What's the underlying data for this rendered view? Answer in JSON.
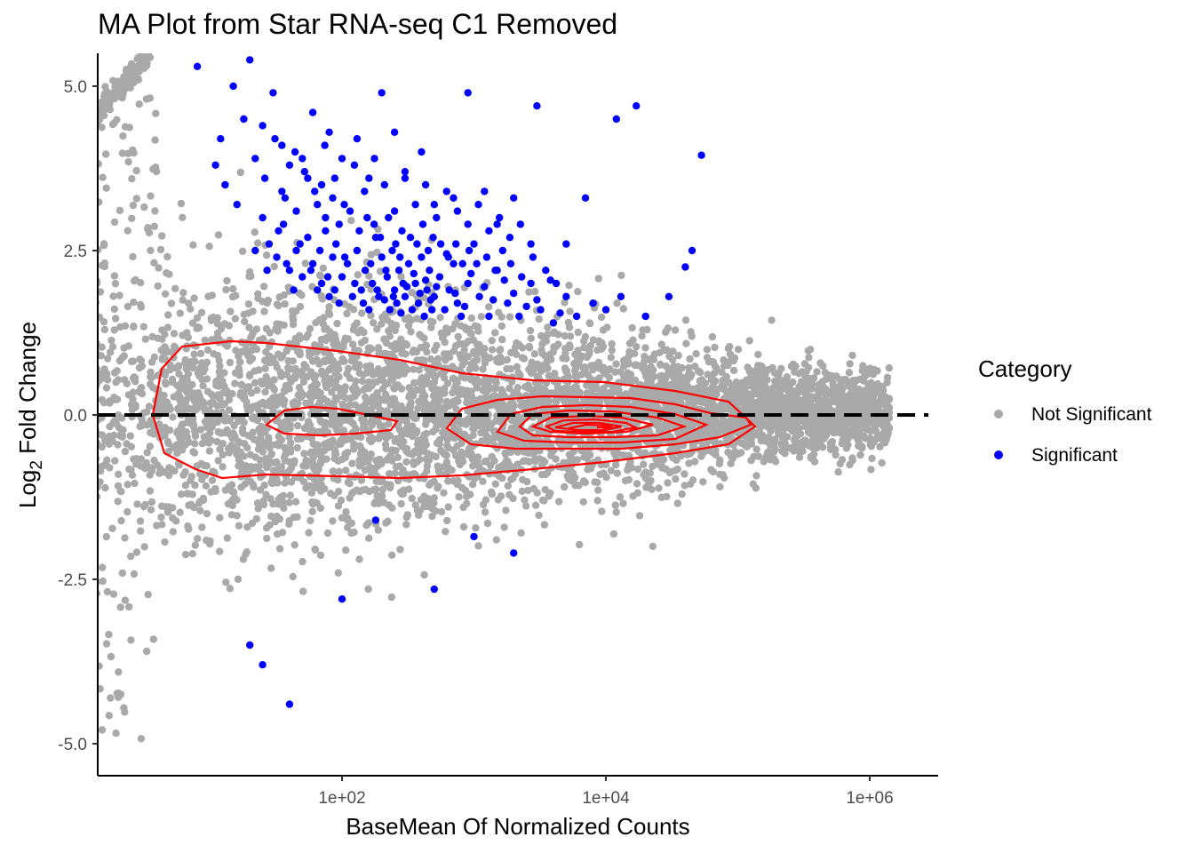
{
  "chart_data": {
    "type": "scatter",
    "title": "MA Plot from Star RNA-seq C1 Removed",
    "xlabel": "BaseMean Of Normalized Counts",
    "ylabel_main": "Log",
    "ylabel_sub": "2",
    "ylabel_rest": " Fold Change",
    "x_scale": "log10",
    "xlim": [
      0.45,
      3000000
    ],
    "ylim": [
      -5.45,
      5.5
    ],
    "x_ticks": [
      {
        "value": 100,
        "label": "1e+02"
      },
      {
        "value": 10000,
        "label": "1e+04"
      },
      {
        "value": 1000000,
        "label": "1e+06"
      }
    ],
    "y_ticks": [
      {
        "value": 5.0,
        "label": "5.0"
      },
      {
        "value": 2.5,
        "label": "2.5"
      },
      {
        "value": 0.0,
        "label": "0.0"
      },
      {
        "value": -2.5,
        "label": "-2.5"
      },
      {
        "value": -5.0,
        "label": "-5.0"
      }
    ],
    "reference_line": {
      "y": 0,
      "style": "dashed",
      "color": "#000000"
    },
    "grid": false,
    "legend": {
      "title": "Category",
      "placement": "right",
      "entries": [
        {
          "label": "Not Significant",
          "color": "#a9a9a9"
        },
        {
          "label": "Significant",
          "color": "#0000ff"
        }
      ]
    },
    "series": [
      {
        "name": "Significant",
        "color": "#0000ff",
        "points": [
          [
            12,
            4.2
          ],
          [
            15,
            5.0
          ],
          [
            20,
            5.4
          ],
          [
            25,
            4.4
          ],
          [
            30,
            4.9
          ],
          [
            35,
            4.1
          ],
          [
            40,
            3.8
          ],
          [
            50,
            3.9
          ],
          [
            60,
            4.6
          ],
          [
            70,
            3.5
          ],
          [
            80,
            4.3
          ],
          [
            100,
            3.9
          ],
          [
            130,
            4.2
          ],
          [
            160,
            3.6
          ],
          [
            200,
            4.9
          ],
          [
            250,
            4.3
          ],
          [
            300,
            3.7
          ],
          [
            400,
            4.0
          ],
          [
            500,
            3.2
          ],
          [
            700,
            3.3
          ],
          [
            900,
            4.9
          ],
          [
            1200,
            3.4
          ],
          [
            1500,
            2.9
          ],
          [
            2000,
            3.3
          ],
          [
            3000,
            4.7
          ],
          [
            5000,
            2.6
          ],
          [
            7000,
            3.3
          ],
          [
            12000,
            4.5
          ],
          [
            17000,
            4.7
          ],
          [
            53000,
            3.95
          ],
          [
            25,
            3.0
          ],
          [
            28,
            2.6
          ],
          [
            32,
            2.4
          ],
          [
            36,
            2.9
          ],
          [
            40,
            2.2
          ],
          [
            45,
            2.5
          ],
          [
            50,
            2.1
          ],
          [
            55,
            2.7
          ],
          [
            60,
            2.3
          ],
          [
            65,
            1.9
          ],
          [
            70,
            2.0
          ],
          [
            75,
            2.8
          ],
          [
            80,
            1.8
          ],
          [
            85,
            2.4
          ],
          [
            90,
            2.6
          ],
          [
            95,
            1.7
          ],
          [
            100,
            2.1
          ],
          [
            110,
            2.3
          ],
          [
            120,
            1.8
          ],
          [
            130,
            2.5
          ],
          [
            140,
            1.9
          ],
          [
            150,
            2.2
          ],
          [
            160,
            1.6
          ],
          [
            170,
            2.0
          ],
          [
            180,
            2.7
          ],
          [
            190,
            1.8
          ],
          [
            200,
            2.4
          ],
          [
            210,
            1.75
          ],
          [
            220,
            2.1
          ],
          [
            230,
            1.6
          ],
          [
            240,
            2.5
          ],
          [
            250,
            1.9
          ],
          [
            260,
            1.7
          ],
          [
            270,
            2.2
          ],
          [
            280,
            1.55
          ],
          [
            290,
            2.0
          ],
          [
            300,
            1.8
          ],
          [
            320,
            2.3
          ],
          [
            340,
            1.6
          ],
          [
            360,
            2.0
          ],
          [
            380,
            1.7
          ],
          [
            400,
            2.4
          ],
          [
            420,
            1.5
          ],
          [
            440,
            1.9
          ],
          [
            460,
            2.2
          ],
          [
            480,
            1.6
          ],
          [
            500,
            1.8
          ],
          [
            550,
            2.1
          ],
          [
            600,
            1.6
          ],
          [
            650,
            1.9
          ],
          [
            700,
            2.3
          ],
          [
            750,
            1.7
          ],
          [
            800,
            1.5
          ],
          [
            900,
            2.0
          ],
          [
            1000,
            2.6
          ],
          [
            1100,
            1.8
          ],
          [
            1300,
            1.5
          ],
          [
            1500,
            2.2
          ],
          [
            1800,
            1.7
          ],
          [
            2200,
            1.5
          ],
          [
            2700,
            2.0
          ],
          [
            3200,
            1.6
          ],
          [
            4000,
            1.4
          ],
          [
            5000,
            1.8
          ],
          [
            6000,
            1.5
          ],
          [
            8000,
            1.7
          ],
          [
            10000,
            1.6
          ],
          [
            13000,
            1.8
          ],
          [
            20000,
            1.5
          ],
          [
            30000,
            1.8
          ],
          [
            40000,
            2.25
          ],
          [
            45000,
            2.5
          ],
          [
            22,
            2.5
          ],
          [
            27,
            2.2
          ],
          [
            33,
            2.8
          ],
          [
            38,
            2.3
          ],
          [
            43,
            1.9
          ],
          [
            48,
            2.6
          ],
          [
            58,
            2.2
          ],
          [
            68,
            2.5
          ],
          [
            78,
            2.1
          ],
          [
            88,
            1.9
          ],
          [
            105,
            2.4
          ],
          [
            125,
            2.0
          ],
          [
            145,
            1.7
          ],
          [
            165,
            2.3
          ],
          [
            185,
            1.9
          ],
          [
            215,
            2.2
          ],
          [
            245,
            1.8
          ],
          [
            275,
            2.4
          ],
          [
            310,
            1.95
          ],
          [
            350,
            2.15
          ],
          [
            390,
            1.85
          ],
          [
            430,
            2.05
          ],
          [
            470,
            1.75
          ],
          [
            520,
            1.95
          ],
          [
            620,
            2.45
          ],
          [
            720,
            1.85
          ],
          [
            850,
            1.65
          ],
          [
            950,
            2.15
          ],
          [
            1200,
            1.95
          ],
          [
            1400,
            1.75
          ],
          [
            1700,
            2.05
          ],
          [
            2000,
            1.85
          ],
          [
            2500,
            1.65
          ],
          [
            3000,
            1.75
          ],
          [
            3800,
            2.05
          ],
          [
            4500,
            1.55
          ],
          [
            35,
            3.4
          ],
          [
            45,
            3.1
          ],
          [
            55,
            3.6
          ],
          [
            65,
            3.2
          ],
          [
            75,
            3.0
          ],
          [
            85,
            3.3
          ],
          [
            95,
            2.9
          ],
          [
            115,
            3.1
          ],
          [
            135,
            2.8
          ],
          [
            155,
            3.0
          ],
          [
            175,
            2.9
          ],
          [
            195,
            2.7
          ],
          [
            225,
            3.0
          ],
          [
            255,
            2.6
          ],
          [
            285,
            2.8
          ],
          [
            330,
            2.7
          ],
          [
            370,
            2.6
          ],
          [
            410,
            2.9
          ],
          [
            450,
            2.5
          ],
          [
            490,
            2.7
          ],
          [
            560,
            2.6
          ],
          [
            640,
            2.4
          ],
          [
            730,
            2.6
          ],
          [
            820,
            2.3
          ],
          [
            920,
            2.5
          ],
          [
            1050,
            2.3
          ],
          [
            1250,
            2.4
          ],
          [
            1450,
            2.2
          ],
          [
            1650,
            2.5
          ],
          [
            1900,
            2.3
          ],
          [
            2300,
            2.1
          ],
          [
            2800,
            2.4
          ],
          [
            3500,
            2.2
          ],
          [
            4200,
            2.0
          ],
          [
            11,
            3.8
          ],
          [
            13,
            3.5
          ],
          [
            16,
            3.2
          ],
          [
            18,
            4.5
          ],
          [
            22,
            3.9
          ],
          [
            26,
            3.6
          ],
          [
            31,
            4.2
          ],
          [
            37,
            3.3
          ],
          [
            44,
            4.0
          ],
          [
            52,
            3.7
          ],
          [
            62,
            3.4
          ],
          [
            74,
            4.1
          ],
          [
            88,
            3.6
          ],
          [
            104,
            3.2
          ],
          [
            124,
            3.8
          ],
          [
            148,
            3.4
          ],
          [
            176,
            3.9
          ],
          [
            210,
            3.5
          ],
          [
            250,
            3.1
          ],
          [
            300,
            3.6
          ],
          [
            360,
            3.2
          ],
          [
            430,
            3.5
          ],
          [
            520,
            3.0
          ],
          [
            620,
            3.4
          ],
          [
            750,
            3.1
          ],
          [
            900,
            2.9
          ],
          [
            1080,
            3.2
          ],
          [
            1300,
            2.8
          ],
          [
            1560,
            3.0
          ],
          [
            1870,
            2.7
          ],
          [
            2250,
            2.9
          ],
          [
            2700,
            2.6
          ],
          [
            8,
            5.3
          ],
          [
            180,
            -1.6
          ],
          [
            1000,
            -1.85
          ],
          [
            2000,
            -2.1
          ],
          [
            500,
            -2.65
          ],
          [
            100,
            -2.8
          ],
          [
            20,
            -3.5
          ],
          [
            25,
            -3.8
          ],
          [
            40,
            -4.4
          ]
        ]
      }
    ],
    "not_significant_note": "Dense cloud of grey points spanning the full basemean range; significant points overlay in blue."
  }
}
